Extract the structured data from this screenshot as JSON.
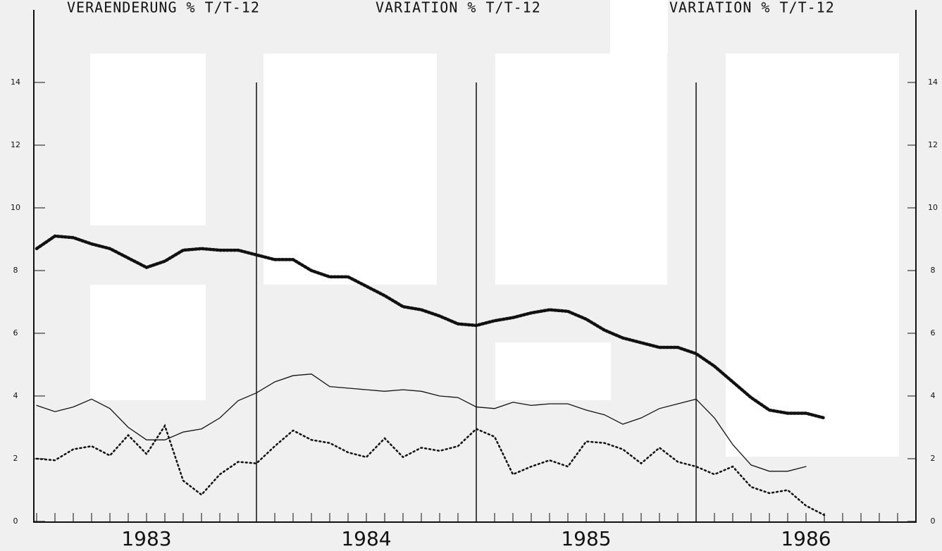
{
  "chart_data": {
    "type": "line",
    "titles": [
      "VERAENDERUNG % T/T-12",
      "VARIATION % T/T-12",
      "VARIATION % T/T-12"
    ],
    "x": [
      0,
      1,
      2,
      3,
      4,
      5,
      6,
      7,
      8,
      9,
      10,
      11,
      12,
      13,
      14,
      15,
      16,
      17,
      18,
      19,
      20,
      21,
      22,
      23,
      24,
      25,
      26,
      27,
      28,
      29,
      30,
      31,
      32,
      33,
      34,
      35,
      36,
      37,
      38,
      39,
      40,
      41,
      42,
      43
    ],
    "xlim": [
      0,
      48
    ],
    "xticks": [
      {
        "value": 6,
        "label": "1983"
      },
      {
        "value": 18,
        "label": "1984"
      },
      {
        "value": 30,
        "label": "1985"
      },
      {
        "value": 42,
        "label": "1986"
      }
    ],
    "vlines": [
      12,
      24,
      36
    ],
    "ylim": [
      0,
      14
    ],
    "yticks": [
      0,
      2,
      4,
      6,
      8,
      10,
      12,
      14
    ],
    "series": [
      {
        "style": "dotted-thick",
        "color": "#111",
        "values": [
          8.7,
          9.1,
          9.05,
          8.85,
          8.7,
          8.4,
          8.1,
          8.3,
          8.65,
          8.7,
          8.65,
          8.65,
          8.5,
          8.35,
          8.35,
          8.0,
          7.8,
          7.8,
          7.5,
          7.2,
          6.85,
          6.75,
          6.55,
          6.3,
          6.25,
          6.4,
          6.5,
          6.65,
          6.75,
          6.7,
          6.45,
          6.1,
          5.85,
          5.7,
          5.55,
          5.55,
          5.35,
          4.95,
          4.45,
          3.95,
          3.55,
          3.45,
          3.45,
          3.3
        ]
      },
      {
        "style": "solid",
        "color": "#111",
        "values": [
          3.7,
          3.5,
          3.65,
          3.9,
          3.6,
          3.0,
          2.6,
          2.6,
          2.85,
          2.95,
          3.3,
          3.85,
          4.1,
          4.45,
          4.65,
          4.7,
          4.3,
          4.25,
          4.2,
          4.15,
          4.2,
          4.15,
          4.0,
          3.95,
          3.65,
          3.6,
          3.8,
          3.7,
          3.75,
          3.75,
          3.55,
          3.4,
          3.1,
          3.3,
          3.6,
          3.75,
          3.9,
          3.3,
          2.45,
          1.8,
          1.6,
          1.6,
          1.75,
          null
        ]
      },
      {
        "style": "dotted",
        "color": "#111",
        "values": [
          2.0,
          1.95,
          2.3,
          2.4,
          2.1,
          2.75,
          2.15,
          3.05,
          1.3,
          0.85,
          1.5,
          1.9,
          1.85,
          2.4,
          2.9,
          2.6,
          2.5,
          2.2,
          2.05,
          2.65,
          2.05,
          2.35,
          2.25,
          2.4,
          2.95,
          2.7,
          1.5,
          1.75,
          1.95,
          1.75,
          2.55,
          2.5,
          2.3,
          1.85,
          2.35,
          1.9,
          1.75,
          1.5,
          1.75,
          1.1,
          0.9,
          1.0,
          0.5,
          0.2
        ]
      }
    ]
  }
}
